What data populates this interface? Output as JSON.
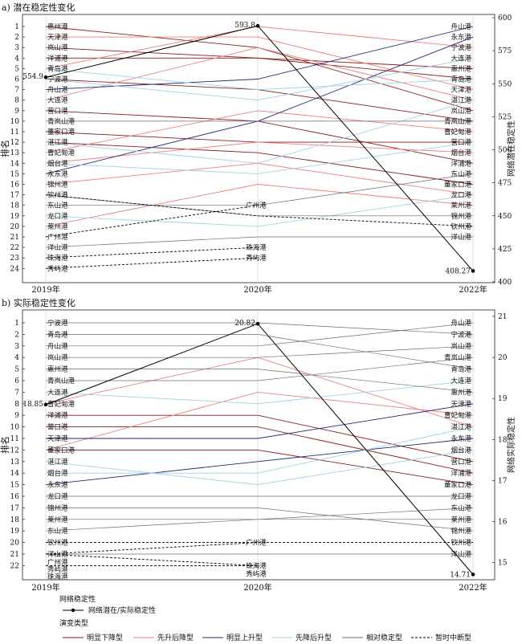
{
  "chart_data": [
    {
      "type": "line",
      "title": "a) 潜在稳定性变化",
      "ylabel": "排名",
      "y2label": "网络潜在稳定性",
      "x": [
        "2019年",
        "2020年",
        "2022年"
      ],
      "rank_ticks": [
        "1",
        "2",
        "3",
        "4",
        "5",
        "6",
        "7",
        "8",
        "9",
        "10",
        "11",
        "12",
        "13",
        "14",
        "15",
        "16",
        "17",
        "18",
        "19",
        "20",
        "21",
        "22",
        "23",
        "24"
      ],
      "ylim_rank": [
        1,
        24
      ],
      "y2_ticks": [
        "400",
        "425",
        "450",
        "475",
        "500",
        "525",
        "550",
        "575",
        "600"
      ],
      "y2lim": [
        400,
        600
      ],
      "left_ports": [
        "惠州港",
        "天津港",
        "岚山港",
        "洋浦港",
        "青岛港",
        "宁波港",
        "舟山港",
        "大连港",
        "营口港",
        "青岚山港",
        "董家口港",
        "湛江港",
        "曹妃甸港",
        "烟台港",
        "永东港",
        "锦州港",
        "钦州港",
        "东山港",
        "龙口港",
        "莱州港",
        "广州港",
        "洋山港",
        "珠海港",
        "秀屿港"
      ],
      "right_ports": [
        "舟山港",
        "永东港",
        "宁波港",
        "大连港",
        "惠州港",
        "青岛港",
        "天津港",
        "湛江港",
        "岚山港",
        "青岚山港",
        "曹妃甸港",
        "营口港",
        "烟台港",
        "洋浦港",
        "东山港",
        "董家口港",
        "龙口港",
        "莱州港",
        "锦州港",
        "钦州港",
        "洋山港"
      ],
      "mid_labels": [
        {
          "label": "广州港",
          "rank": 18
        },
        {
          "label": "珠海港",
          "rank": 22
        },
        {
          "label": "秀屿港",
          "rank": 23
        }
      ],
      "series": [
        {
          "name": "网络潜在/实际稳定性",
          "values": [
            554.9,
            593.8,
            408.27
          ]
        }
      ],
      "point_labels": [
        "554.9",
        "593.8",
        "408.27"
      ],
      "trajectories": [
        {
          "type": "明显下降型",
          "ranks": [
            1,
            3,
            9
          ]
        },
        {
          "type": "明显下降型",
          "ranks": [
            3,
            4,
            5
          ]
        },
        {
          "type": "明显下降型",
          "ranks": [
            4,
            4,
            6
          ]
        },
        {
          "type": "明显下降型",
          "ranks": [
            6,
            7,
            10
          ]
        },
        {
          "type": "明显下降型",
          "ranks": [
            9,
            10,
            14
          ]
        },
        {
          "type": "明显下降型",
          "ranks": [
            11,
            12,
            12
          ]
        },
        {
          "type": "明显下降型",
          "ranks": [
            12,
            13,
            16
          ]
        },
        {
          "type": "先升后降型",
          "ranks": [
            2,
            2,
            7
          ]
        },
        {
          "type": "先升后降型",
          "ranks": [
            5,
            1,
            3
          ]
        },
        {
          "type": "先升后降型",
          "ranks": [
            8,
            3,
            8
          ]
        },
        {
          "type": "先升后降型",
          "ranks": [
            13,
            9,
            11
          ]
        },
        {
          "type": "先升后降型",
          "ranks": [
            14,
            12,
            13
          ]
        },
        {
          "type": "先升后降型",
          "ranks": [
            16,
            14,
            17
          ]
        },
        {
          "type": "先升后降型",
          "ranks": [
            20,
            16,
            18
          ]
        },
        {
          "type": "明显上升型",
          "ranks": [
            7,
            6,
            1
          ]
        },
        {
          "type": "明显上升型",
          "ranks": [
            15,
            10,
            2
          ]
        },
        {
          "type": "先降后升型",
          "ranks": [
            5,
            7,
            6
          ]
        },
        {
          "type": "先降后升型",
          "ranks": [
            6,
            8,
            4
          ]
        },
        {
          "type": "先降后升型",
          "ranks": [
            12,
            14,
            8
          ]
        },
        {
          "type": "先降后升型",
          "ranks": [
            14,
            15,
            12
          ]
        },
        {
          "type": "先降后升型",
          "ranks": [
            19,
            20,
            17
          ]
        },
        {
          "type": "相对稳定型",
          "ranks": [
            10,
            10,
            10
          ]
        },
        {
          "type": "相对稳定型",
          "ranks": [
            18,
            18,
            15
          ]
        },
        {
          "type": "相对稳定型",
          "ranks": [
            17,
            19,
            19
          ]
        },
        {
          "type": "相对稳定型",
          "ranks": [
            22,
            21,
            21
          ]
        },
        {
          "type": "暂时中断型",
          "ranks": [
            17,
            19,
            20
          ]
        },
        {
          "type": "暂时中断型",
          "ranks": [
            21,
            18,
            null
          ]
        },
        {
          "type": "暂时中断型",
          "ranks": [
            23,
            22,
            null
          ]
        },
        {
          "type": "暂时中断型",
          "ranks": [
            24,
            23,
            null
          ]
        }
      ]
    },
    {
      "type": "line",
      "title": "b) 实际稳定性变化",
      "ylabel": "排名",
      "y2label": "网络实际稳定性",
      "x": [
        "2019年",
        "2020年",
        "2022年"
      ],
      "rank_ticks": [
        "1",
        "2",
        "3",
        "4",
        "5",
        "6",
        "7",
        "8",
        "9",
        "10",
        "11",
        "12",
        "13",
        "14",
        "15",
        "16",
        "17",
        "18",
        "19",
        "20",
        "21",
        "22"
      ],
      "ylim_rank": [
        1,
        22
      ],
      "y2_ticks": [
        "15",
        "16",
        "17",
        "18",
        "19",
        "20",
        "21"
      ],
      "y2lim": [
        14.6,
        21
      ],
      "left_ports": [
        "宁波港",
        "青岛港",
        "舟山港",
        "岚山港",
        "惠州港",
        "青岚山港",
        "大连港",
        "曹妃甸港",
        "洋浦港",
        "营口港",
        "天津港",
        "董家口港",
        "湛江港",
        "烟台港",
        "永东港",
        "龙口港",
        "锦州港",
        "莱州港",
        "东山港",
        "钦州港",
        "洋山港",
        "广州港",
        "秀屿港",
        "珠海港"
      ],
      "right_ports": [
        "舟山港",
        "宁波港",
        "岚山港",
        "青岚山港",
        "青岛港",
        "大连港",
        "惠州港",
        "天津港",
        "曹妃甸港",
        "湛江港",
        "永东港",
        "烟台港",
        "营口港",
        "洋浦港",
        "董家口港",
        "龙口港",
        "东山港",
        "莱州港",
        "锦州港",
        "钦州港",
        "洋山港"
      ],
      "mid_labels": [
        {
          "label": "广州港",
          "rank": 20
        },
        {
          "label": "珠海港",
          "rank": 22
        },
        {
          "label": "秀屿港",
          "rank": 22.7
        }
      ],
      "series": [
        {
          "name": "网络潜在/实际稳定性",
          "values": [
            18.85,
            20.82,
            14.71
          ]
        }
      ],
      "point_labels": [
        "18.85",
        "20.82",
        "14.71"
      ],
      "trajectories": [
        {
          "type": "明显下降型",
          "ranks": [
            9,
            9,
            13
          ]
        },
        {
          "type": "明显下降型",
          "ranks": [
            10,
            10,
            14
          ]
        },
        {
          "type": "明显下降型",
          "ranks": [
            12,
            12,
            15
          ]
        },
        {
          "type": "先升后降型",
          "ranks": [
            12,
            7,
            9
          ]
        },
        {
          "type": "先升后降型",
          "ranks": [
            8,
            4,
            10
          ]
        },
        {
          "type": "明显上升型",
          "ranks": [
            11,
            11,
            8
          ]
        },
        {
          "type": "明显上升型",
          "ranks": [
            15,
            13,
            11
          ]
        },
        {
          "type": "先降后升型",
          "ranks": [
            7,
            8,
            6
          ]
        },
        {
          "type": "先降后升型",
          "ranks": [
            13,
            15,
            12
          ]
        },
        {
          "type": "先降后升型",
          "ranks": [
            14,
            14,
            10
          ]
        },
        {
          "type": "相对稳定型",
          "ranks": [
            1,
            1,
            2
          ]
        },
        {
          "type": "相对稳定型",
          "ranks": [
            2,
            2,
            5
          ]
        },
        {
          "type": "相对稳定型",
          "ranks": [
            3,
            3,
            1
          ]
        },
        {
          "type": "相对稳定型",
          "ranks": [
            4,
            4,
            3
          ]
        },
        {
          "type": "相对稳定型",
          "ranks": [
            5,
            5,
            7
          ]
        },
        {
          "type": "相对稳定型",
          "ranks": [
            6,
            6,
            4
          ]
        },
        {
          "type": "相对稳定型",
          "ranks": [
            16,
            16,
            16
          ]
        },
        {
          "type": "相对稳定型",
          "ranks": [
            17,
            17,
            19
          ]
        },
        {
          "type": "相对稳定型",
          "ranks": [
            18,
            18,
            18
          ]
        },
        {
          "type": "相对稳定型",
          "ranks": [
            19,
            18,
            17
          ]
        },
        {
          "type": "相对稳定型",
          "ranks": [
            21,
            21,
            21
          ]
        },
        {
          "type": "暂时中断型",
          "ranks": [
            20,
            20,
            20
          ]
        },
        {
          "type": "暂时中断型",
          "ranks": [
            21,
            20,
            null
          ]
        },
        {
          "type": "暂时中断型",
          "ranks": [
            21,
            22,
            null
          ]
        },
        {
          "type": "暂时中断型",
          "ranks": [
            22,
            22,
            null
          ]
        }
      ]
    }
  ],
  "legend": {
    "group1_title": "网络稳定性",
    "marker_label": "网络潜在/实际稳定性",
    "group2_title": "演变类型",
    "types": [
      {
        "label": "明显下降型",
        "color": "#8b1e1e",
        "dash": false
      },
      {
        "label": "先升后降型",
        "color": "#ee7f7f",
        "dash": false
      },
      {
        "label": "明显上升型",
        "color": "#1f2a78",
        "dash": false
      },
      {
        "label": "先降后升型",
        "color": "#9fd0e6",
        "dash": false
      },
      {
        "label": "相对稳定型",
        "color": "#6d6d6d",
        "dash": false
      },
      {
        "label": "暂时中断型",
        "color": "#000000",
        "dash": true
      }
    ]
  }
}
